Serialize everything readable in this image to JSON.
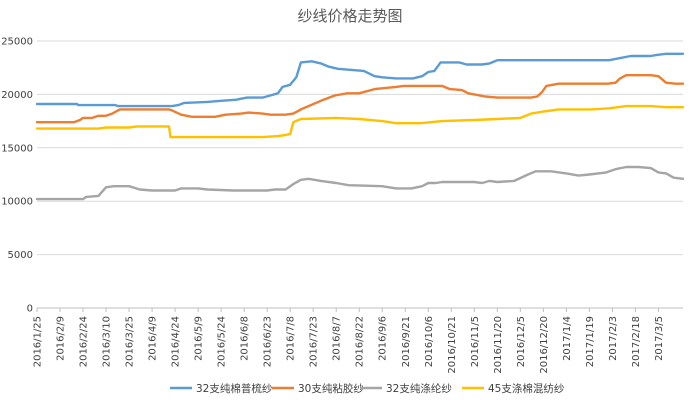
{
  "chart_data": {
    "type": "line",
    "title": "纱线价格走势图",
    "xlabel": "",
    "ylabel": "",
    "ylim": [
      0,
      25000
    ],
    "yticks": [
      0,
      5000,
      10000,
      15000,
      20000,
      25000
    ],
    "ytick_labels": [
      "0",
      "5000",
      "10000",
      "15000",
      "20000",
      "25000"
    ],
    "xlim": [
      "2016/1/25",
      "2017/3/21"
    ],
    "xtick_labels": [
      "2016/1/25",
      "2016/2/9",
      "2016/2/24",
      "2016/3/10",
      "2016/3/25",
      "2016/4/9",
      "2016/4/24",
      "2016/5/9",
      "2016/5/24",
      "2016/6/8",
      "2016/6/23",
      "2016/7/8",
      "2016/7/23",
      "2016/8/7",
      "2016/8/22",
      "2016/9/6",
      "2016/9/21",
      "2016/10/6",
      "2016/10/21",
      "2016/11/5",
      "2016/11/20",
      "2016/12/5",
      "2016/12/20",
      "2017/1/4",
      "2017/1/19",
      "2017/2/3",
      "2017/2/18",
      "2017/3/5"
    ],
    "grid": "horizontal",
    "legend_position": "bottom",
    "series": [
      {
        "name": "32支纯棉普梳纱",
        "color": "#5b9bd5",
        "points": [
          [
            "2016/1/25",
            19100
          ],
          [
            "2016/2/20",
            19100
          ],
          [
            "2016/2/21",
            19000
          ],
          [
            "2016/3/16",
            19000
          ],
          [
            "2016/3/18",
            18900
          ],
          [
            "2016/4/22",
            18900
          ],
          [
            "2016/4/26",
            19000
          ],
          [
            "2016/4/30",
            19200
          ],
          [
            "2016/5/15",
            19300
          ],
          [
            "2016/5/24",
            19400
          ],
          [
            "2016/6/3",
            19500
          ],
          [
            "2016/6/6",
            19600
          ],
          [
            "2016/6/10",
            19700
          ],
          [
            "2016/6/20",
            19700
          ],
          [
            "2016/6/25",
            19900
          ],
          [
            "2016/6/30",
            20100
          ],
          [
            "2016/7/3",
            20700
          ],
          [
            "2016/7/8",
            20900
          ],
          [
            "2016/7/12",
            21600
          ],
          [
            "2016/7/15",
            23000
          ],
          [
            "2016/7/22",
            23100
          ],
          [
            "2016/7/28",
            22900
          ],
          [
            "2016/8/2",
            22600
          ],
          [
            "2016/8/8",
            22400
          ],
          [
            "2016/8/25",
            22200
          ],
          [
            "2016/9/1",
            21700
          ],
          [
            "2016/9/6",
            21600
          ],
          [
            "2016/9/15",
            21500
          ],
          [
            "2016/9/26",
            21500
          ],
          [
            "2016/10/2",
            21700
          ],
          [
            "2016/10/6",
            22100
          ],
          [
            "2016/10/10",
            22200
          ],
          [
            "2016/10/14",
            23000
          ],
          [
            "2016/10/26",
            23000
          ],
          [
            "2016/10/31",
            22800
          ],
          [
            "2016/11/10",
            22800
          ],
          [
            "2016/11/15",
            22900
          ],
          [
            "2016/11/20",
            23200
          ],
          [
            "2016/12/12",
            23200
          ],
          [
            "2016/12/20",
            23200
          ],
          [
            "2017/1/25",
            23200
          ],
          [
            "2017/2/1",
            23200
          ],
          [
            "2017/2/8",
            23400
          ],
          [
            "2017/2/15",
            23600
          ],
          [
            "2017/2/28",
            23600
          ],
          [
            "2017/3/4",
            23700
          ],
          [
            "2017/3/10",
            23800
          ],
          [
            "2017/3/21",
            23800
          ]
        ]
      },
      {
        "name": "30支纯粘胶纱",
        "color": "#ed7d31",
        "points": [
          [
            "2016/1/25",
            17400
          ],
          [
            "2016/2/18",
            17400
          ],
          [
            "2016/2/22",
            17600
          ],
          [
            "2016/2/24",
            17800
          ],
          [
            "2016/3/1",
            17800
          ],
          [
            "2016/3/5",
            18000
          ],
          [
            "2016/3/10",
            18000
          ],
          [
            "2016/3/14",
            18200
          ],
          [
            "2016/3/19",
            18600
          ],
          [
            "2016/4/20",
            18600
          ],
          [
            "2016/4/22",
            18500
          ],
          [
            "2016/4/28",
            18100
          ],
          [
            "2016/5/5",
            17900
          ],
          [
            "2016/5/20",
            17900
          ],
          [
            "2016/5/27",
            18100
          ],
          [
            "2016/6/6",
            18200
          ],
          [
            "2016/6/11",
            18300
          ],
          [
            "2016/6/20",
            18200
          ],
          [
            "2016/6/25",
            18100
          ],
          [
            "2016/7/5",
            18100
          ],
          [
            "2016/7/10",
            18200
          ],
          [
            "2016/7/15",
            18600
          ],
          [
            "2016/7/28",
            19400
          ],
          [
            "2016/8/6",
            19900
          ],
          [
            "2016/8/14",
            20100
          ],
          [
            "2016/8/22",
            20100
          ],
          [
            "2016/9/1",
            20500
          ],
          [
            "2016/9/15",
            20700
          ],
          [
            "2016/9/20",
            20800
          ],
          [
            "2016/10/15",
            20800
          ],
          [
            "2016/10/20",
            20500
          ],
          [
            "2016/10/28",
            20400
          ],
          [
            "2016/11/1",
            20100
          ],
          [
            "2016/11/5",
            20000
          ],
          [
            "2016/11/12",
            19800
          ],
          [
            "2016/11/20",
            19700
          ],
          [
            "2016/12/12",
            19700
          ],
          [
            "2016/12/16",
            19800
          ],
          [
            "2016/12/19",
            20200
          ],
          [
            "2016/12/22",
            20800
          ],
          [
            "2016/12/30",
            21000
          ],
          [
            "2017/1/15",
            21000
          ],
          [
            "2017/1/31",
            21000
          ],
          [
            "2017/2/5",
            21100
          ],
          [
            "2017/2/8",
            21500
          ],
          [
            "2017/2/12",
            21800
          ],
          [
            "2017/2/28",
            21800
          ],
          [
            "2017/3/5",
            21700
          ],
          [
            "2017/3/10",
            21100
          ],
          [
            "2017/3/16",
            21000
          ],
          [
            "2017/3/21",
            21000
          ]
        ]
      },
      {
        "name": "32支纯涤纶纱",
        "color": "#a5a5a5",
        "points": [
          [
            "2016/1/25",
            10200
          ],
          [
            "2016/2/24",
            10200
          ],
          [
            "2016/2/26",
            10400
          ],
          [
            "2016/3/5",
            10500
          ],
          [
            "2016/3/10",
            11300
          ],
          [
            "2016/3/15",
            11400
          ],
          [
            "2016/3/25",
            11400
          ],
          [
            "2016/4/1",
            11100
          ],
          [
            "2016/4/9",
            11000
          ],
          [
            "2016/4/24",
            11000
          ],
          [
            "2016/4/28",
            11200
          ],
          [
            "2016/5/9",
            11200
          ],
          [
            "2016/5/15",
            11100
          ],
          [
            "2016/6/1",
            11000
          ],
          [
            "2016/6/23",
            11000
          ],
          [
            "2016/6/28",
            11100
          ],
          [
            "2016/7/5",
            11100
          ],
          [
            "2016/7/10",
            11600
          ],
          [
            "2016/7/15",
            12000
          ],
          [
            "2016/7/20",
            12100
          ],
          [
            "2016/7/28",
            11900
          ],
          [
            "2016/8/7",
            11700
          ],
          [
            "2016/8/15",
            11500
          ],
          [
            "2016/9/6",
            11400
          ],
          [
            "2016/9/15",
            11200
          ],
          [
            "2016/9/25",
            11200
          ],
          [
            "2016/10/2",
            11400
          ],
          [
            "2016/10/6",
            11700
          ],
          [
            "2016/10/11",
            11700
          ],
          [
            "2016/10/15",
            11800
          ],
          [
            "2016/11/5",
            11800
          ],
          [
            "2016/11/10",
            11700
          ],
          [
            "2016/11/15",
            11900
          ],
          [
            "2016/11/20",
            11800
          ],
          [
            "2016/12/1",
            11900
          ],
          [
            "2016/12/10",
            12500
          ],
          [
            "2016/12/15",
            12800
          ],
          [
            "2016/12/25",
            12800
          ],
          [
            "2017/1/4",
            12600
          ],
          [
            "2017/1/12",
            12400
          ],
          [
            "2017/1/19",
            12500
          ],
          [
            "2017/1/30",
            12700
          ],
          [
            "2017/2/5",
            13000
          ],
          [
            "2017/2/12",
            13200
          ],
          [
            "2017/2/20",
            13200
          ],
          [
            "2017/2/28",
            13100
          ],
          [
            "2017/3/5",
            12700
          ],
          [
            "2017/3/10",
            12600
          ],
          [
            "2017/3/15",
            12200
          ],
          [
            "2017/3/21",
            12100
          ]
        ]
      },
      {
        "name": "45支涤棉混纺纱",
        "color": "#ffc000",
        "points": [
          [
            "2016/1/25",
            16800
          ],
          [
            "2016/3/5",
            16800
          ],
          [
            "2016/3/10",
            16900
          ],
          [
            "2016/3/25",
            16900
          ],
          [
            "2016/3/30",
            17000
          ],
          [
            "2016/4/20",
            17000
          ],
          [
            "2016/4/21",
            16000
          ],
          [
            "2016/5/20",
            16000
          ],
          [
            "2016/6/20",
            16000
          ],
          [
            "2016/6/30",
            16100
          ],
          [
            "2016/7/5",
            16200
          ],
          [
            "2016/7/8",
            16300
          ],
          [
            "2016/7/10",
            17400
          ],
          [
            "2016/7/15",
            17700
          ],
          [
            "2016/8/7",
            17800
          ],
          [
            "2016/8/22",
            17700
          ],
          [
            "2016/9/6",
            17500
          ],
          [
            "2016/9/15",
            17300
          ],
          [
            "2016/10/1",
            17300
          ],
          [
            "2016/10/15",
            17500
          ],
          [
            "2016/11/5",
            17600
          ],
          [
            "2016/11/20",
            17700
          ],
          [
            "2016/12/5",
            17800
          ],
          [
            "2016/12/12",
            18200
          ],
          [
            "2016/12/20",
            18400
          ],
          [
            "2016/12/30",
            18600
          ],
          [
            "2017/1/20",
            18600
          ],
          [
            "2017/2/1",
            18700
          ],
          [
            "2017/2/12",
            18900
          ],
          [
            "2017/2/28",
            18900
          ],
          [
            "2017/3/10",
            18800
          ],
          [
            "2017/3/21",
            18800
          ]
        ]
      }
    ]
  }
}
